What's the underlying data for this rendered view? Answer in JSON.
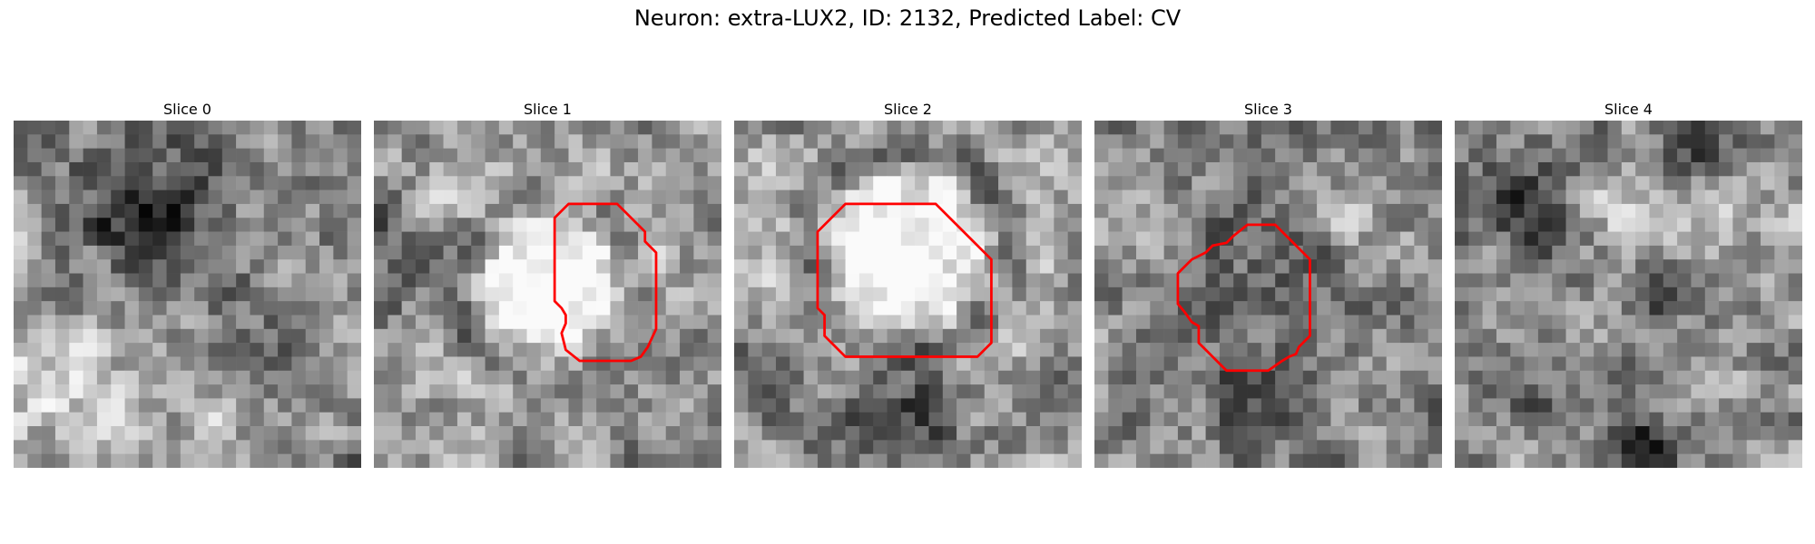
{
  "figure": {
    "title": "Neuron: extra-LUX2, ID: 2132, Predicted Label: CV"
  },
  "colors": {
    "contour": "#ff0000",
    "colormap": "gray"
  },
  "slices": [
    {
      "title": "Slice 0",
      "seed": 11,
      "blobs": [
        [
          11,
          6,
          3.5,
          -70
        ],
        [
          8,
          9,
          4,
          -40
        ],
        [
          16,
          8,
          2.5,
          30
        ],
        [
          3,
          18,
          4,
          60
        ],
        [
          19,
          13,
          3,
          -30
        ],
        [
          14,
          19,
          3,
          30
        ]
      ],
      "contour": []
    },
    {
      "title": "Slice 1",
      "seed": 23,
      "blobs": [
        [
          12.5,
          12,
          5.5,
          150
        ],
        [
          12.5,
          12,
          8.5,
          -80
        ],
        [
          2,
          10,
          3,
          -60
        ],
        [
          6,
          6,
          3,
          20
        ],
        [
          17,
          21,
          4,
          -20
        ]
      ],
      "contour": [
        [
          14,
          6
        ],
        [
          17.5,
          6
        ],
        [
          19.5,
          8
        ],
        [
          19.5,
          8.7
        ],
        [
          20.3,
          9.5
        ],
        [
          20.3,
          15
        ],
        [
          19.7,
          16.3
        ],
        [
          19.2,
          17
        ],
        [
          18.5,
          17.3
        ],
        [
          14.8,
          17.3
        ],
        [
          13.8,
          16.5
        ],
        [
          13.5,
          15.3
        ],
        [
          13.8,
          14.6
        ],
        [
          13.8,
          14
        ],
        [
          13.5,
          13.5
        ],
        [
          13,
          13
        ],
        [
          13,
          7
        ]
      ]
    },
    {
      "title": "Slice 2",
      "seed": 37,
      "blobs": [
        [
          12.5,
          9.5,
          6,
          140
        ],
        [
          12.5,
          9.5,
          9.5,
          -90
        ],
        [
          1.5,
          18,
          2.5,
          -70
        ],
        [
          12.5,
          21,
          3,
          -80
        ],
        [
          6,
          7,
          3,
          20
        ]
      ],
      "contour": [
        [
          8,
          6
        ],
        [
          14.5,
          6
        ],
        [
          18.5,
          10
        ],
        [
          18.5,
          16
        ],
        [
          17.5,
          17
        ],
        [
          8,
          17
        ],
        [
          6.5,
          15.5
        ],
        [
          6.5,
          14
        ],
        [
          6,
          13.5
        ],
        [
          6,
          8
        ]
      ]
    },
    {
      "title": "Slice 3",
      "seed": 53,
      "blobs": [
        [
          11,
          13.5,
          5,
          -90
        ],
        [
          11,
          13.5,
          3,
          50
        ],
        [
          21,
          9,
          4,
          30
        ],
        [
          4,
          8,
          3,
          20
        ],
        [
          20,
          20,
          3,
          20
        ]
      ],
      "contour": [
        [
          11,
          7.5
        ],
        [
          13,
          7.5
        ],
        [
          15.5,
          10
        ],
        [
          15.5,
          15.5
        ],
        [
          14.7,
          16.3
        ],
        [
          14.5,
          16.8
        ],
        [
          14,
          17
        ],
        [
          13.5,
          17.3
        ],
        [
          12.5,
          18
        ],
        [
          9.5,
          18
        ],
        [
          9,
          17.5
        ],
        [
          8.5,
          17
        ],
        [
          8,
          16.5
        ],
        [
          7.5,
          16
        ],
        [
          7.5,
          14.8
        ],
        [
          7,
          14.5
        ],
        [
          6.5,
          13.8
        ],
        [
          6,
          13.2
        ],
        [
          6,
          11
        ],
        [
          7,
          10
        ],
        [
          8,
          9.5
        ],
        [
          8.5,
          9
        ],
        [
          9.5,
          8.8
        ],
        [
          10,
          8.3
        ]
      ]
    },
    {
      "title": "Slice 4",
      "seed": 71,
      "blobs": [
        [
          5.5,
          5.5,
          3,
          -80
        ],
        [
          14,
          12.5,
          1.5,
          -60
        ],
        [
          18,
          0.5,
          2.5,
          -80
        ],
        [
          5,
          19,
          2,
          -60
        ],
        [
          14,
          23,
          2,
          -70
        ],
        [
          20,
          7,
          3,
          50
        ],
        [
          12,
          6,
          3,
          40
        ]
      ],
      "contour": []
    }
  ]
}
